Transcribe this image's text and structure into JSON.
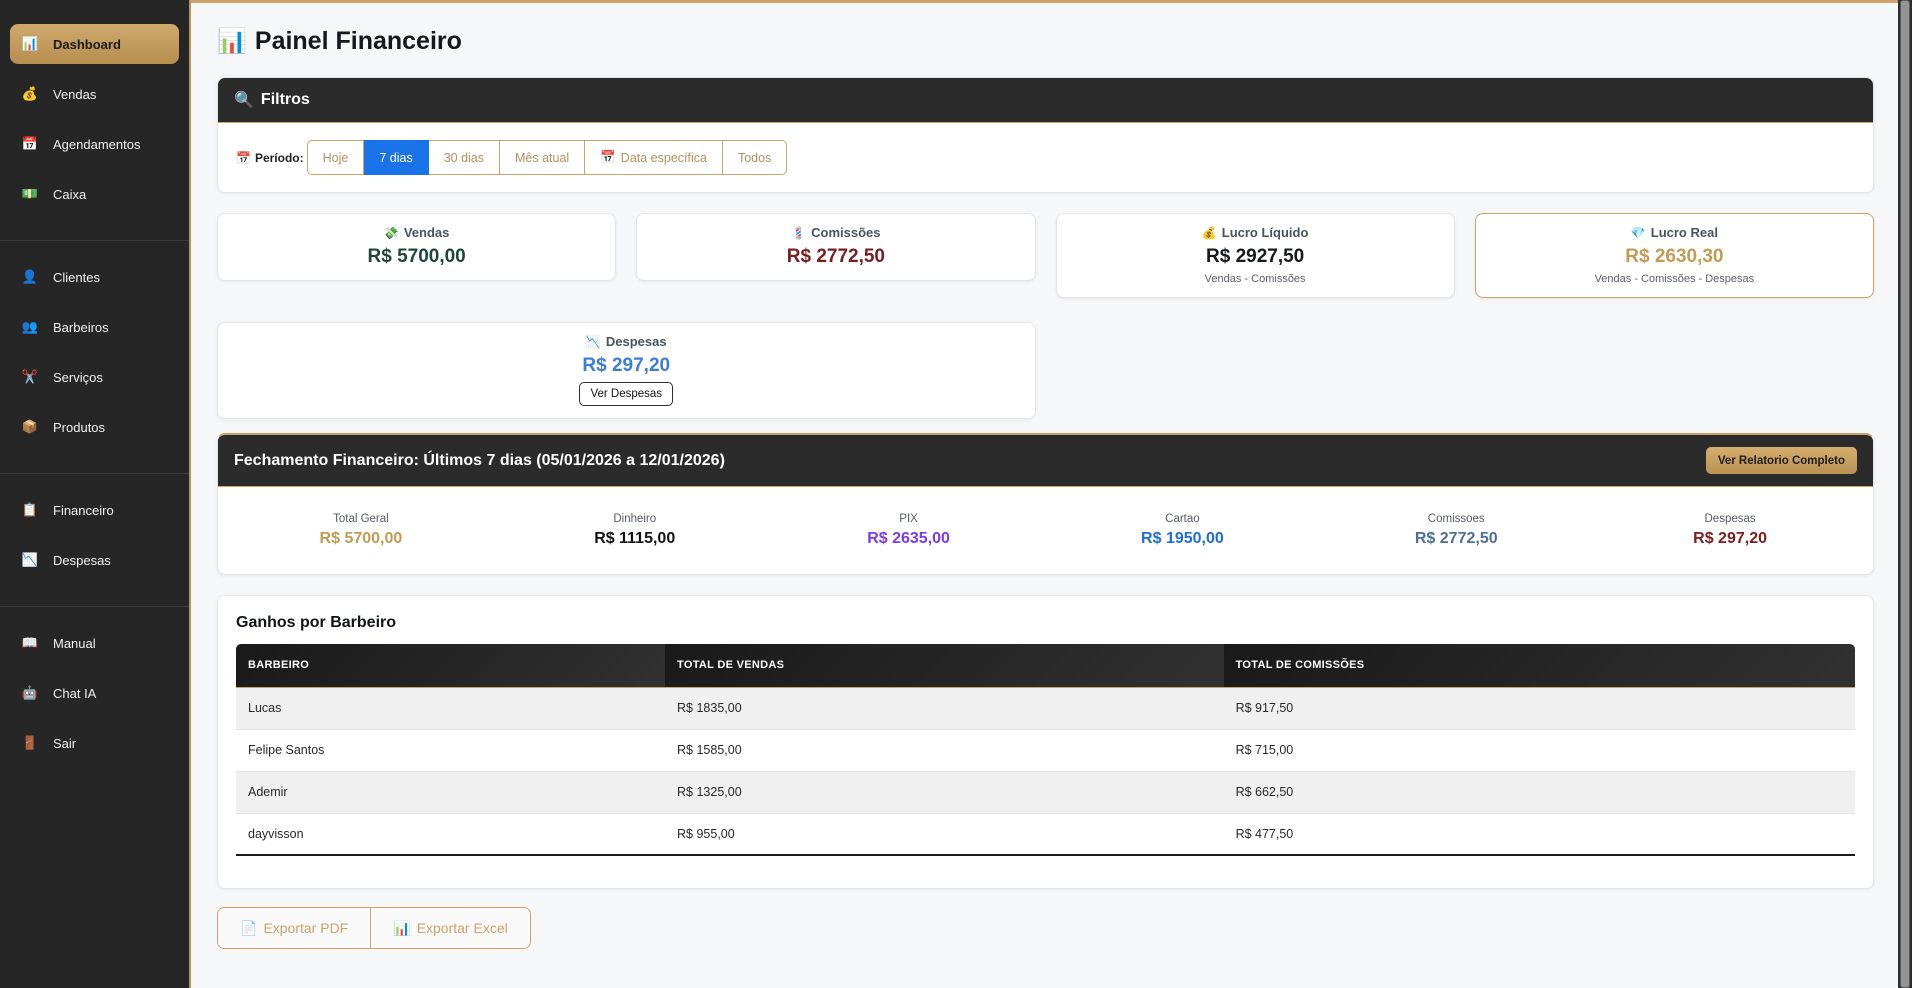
{
  "app": {
    "title": "Painel Financeiro",
    "title_icon": "📊"
  },
  "sidebar": {
    "groups": [
      {
        "items": [
          {
            "label": "Dashboard",
            "icon": "📊",
            "icon_name": "bar-chart-icon",
            "active": true
          },
          {
            "label": "Vendas",
            "icon": "💰",
            "icon_name": "money-bag-icon"
          },
          {
            "label": "Agendamentos",
            "icon": "📅",
            "icon_name": "calendar-icon"
          },
          {
            "label": "Caixa",
            "icon": "💵",
            "icon_name": "banknote-icon"
          }
        ]
      },
      {
        "items": [
          {
            "label": "Clientes",
            "icon": "👤",
            "icon_name": "person-icon"
          },
          {
            "label": "Barbeiros",
            "icon": "👥",
            "icon_name": "people-icon"
          },
          {
            "label": "Serviços",
            "icon": "✂️",
            "icon_name": "scissors-icon"
          },
          {
            "label": "Produtos",
            "icon": "📦",
            "icon_name": "package-icon"
          }
        ]
      },
      {
        "items": [
          {
            "label": "Financeiro",
            "icon": "📋",
            "icon_name": "clipboard-icon"
          },
          {
            "label": "Despesas",
            "icon": "📉",
            "icon_name": "chart-decreasing-icon"
          }
        ]
      },
      {
        "items": [
          {
            "label": "Manual",
            "icon": "📖",
            "icon_name": "open-book-icon"
          },
          {
            "label": "Chat IA",
            "icon": "🤖",
            "icon_name": "robot-icon"
          },
          {
            "label": "Sair",
            "icon": "🚪",
            "icon_name": "door-icon"
          }
        ]
      }
    ]
  },
  "filters": {
    "title": "Filtros",
    "title_icon": "🔍",
    "period_label": "Período:",
    "period_icon": "📅",
    "buttons": [
      {
        "label": "Hoje"
      },
      {
        "label": "7 dias",
        "active": true
      },
      {
        "label": "30 dias"
      },
      {
        "label": "Mês atual"
      },
      {
        "label": "Data específica",
        "icon": "📅"
      },
      {
        "label": "Todos"
      }
    ]
  },
  "stat_cards": [
    {
      "label": "Vendas",
      "icon": "💸",
      "icon_name": "money-with-wings-icon",
      "value": "R$ 5700,00",
      "color": "#1e4736"
    },
    {
      "label": "Comissões",
      "icon": "💈",
      "icon_name": "barber-pole-icon",
      "value": "R$ 2772,50",
      "color": "#7a1d22"
    },
    {
      "label": "Lucro Líquido",
      "icon": "💰",
      "icon_name": "money-bag-icon",
      "value": "R$ 2927,50",
      "color": "#15181d",
      "subtitle": "Vendas - Comissões"
    },
    {
      "label": "Lucro Real",
      "icon": "💎",
      "icon_name": "gem-icon",
      "value": "R$ 2630,30",
      "color": "#c49b52",
      "subtitle": "Vendas - Comissões - Despesas",
      "highlight": true
    }
  ],
  "expenses_card": {
    "label": "Despesas",
    "icon": "📉",
    "value": "R$ 297,20",
    "color": "#3b7dd8",
    "button_label": "Ver Despesas"
  },
  "closing": {
    "title": "Fechamento Financeiro: Últimos 7 dias (05/01/2026 a 12/01/2026)",
    "button_label": "Ver Relatorio Completo",
    "stats": [
      {
        "label": "Total Geral",
        "value": "R$ 5700,00",
        "color": "#c49b52"
      },
      {
        "label": "Dinheiro",
        "value": "R$ 1115,00",
        "color": "#121212"
      },
      {
        "label": "PIX",
        "value": "R$ 2635,00",
        "color": "#7c3aed"
      },
      {
        "label": "Cartao",
        "value": "R$ 1950,00",
        "color": "#1d6ed8"
      },
      {
        "label": "Comissoes",
        "value": "R$ 2772,50",
        "color": "#4e6f96"
      },
      {
        "label": "Despesas",
        "value": "R$ 297,20",
        "color": "#7f1d1d"
      }
    ]
  },
  "earnings": {
    "title": "Ganhos por Barbeiro",
    "columns": [
      "BARBEIRO",
      "TOTAL DE VENDAS",
      "TOTAL DE COMISSÕES"
    ],
    "rows": [
      {
        "name": "Lucas",
        "sales": "R$ 1835,00",
        "commissions": "R$ 917,50"
      },
      {
        "name": "Felipe Santos",
        "sales": "R$ 1585,00",
        "commissions": "R$ 715,00"
      },
      {
        "name": "Ademir",
        "sales": "R$ 1325,00",
        "commissions": "R$ 662,50"
      },
      {
        "name": "dayvisson",
        "sales": "R$ 955,00",
        "commissions": "R$ 477,50"
      }
    ]
  },
  "export": {
    "pdf": {
      "label": "Exportar PDF",
      "icon": "📄"
    },
    "excel": {
      "label": "Exportar Excel",
      "icon": "📊"
    }
  }
}
